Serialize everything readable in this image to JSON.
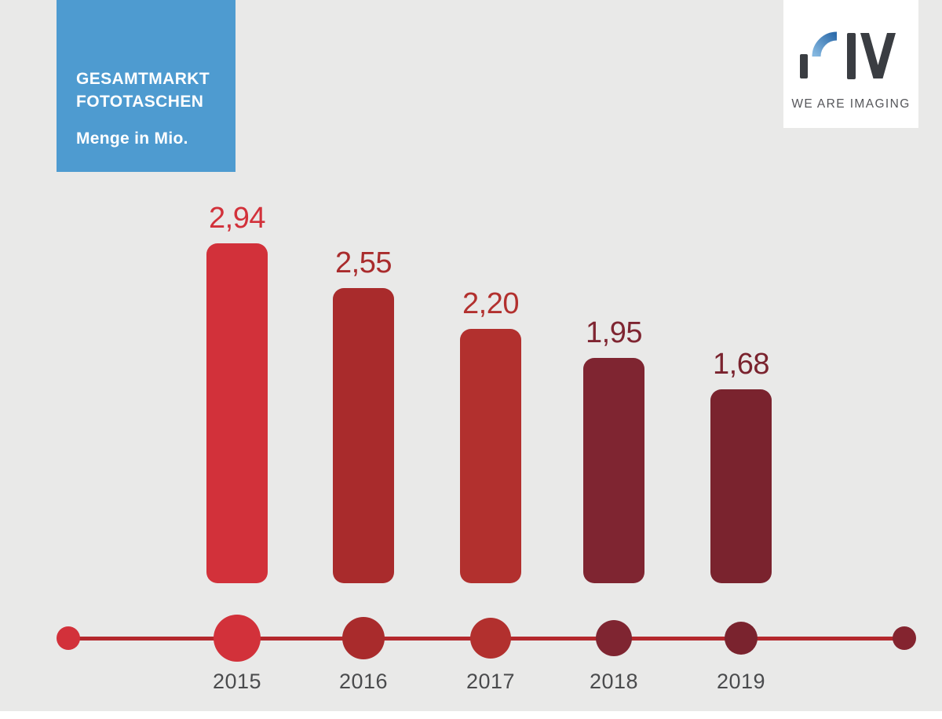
{
  "page": {
    "background": "#e9e9e8"
  },
  "info_box": {
    "title_line1": "GESAMTMARKT",
    "title_line2": "FOTOTASCHEN",
    "subtitle": "Menge in Mio.",
    "background": "#4e9bd0",
    "text_color": "#ffffff"
  },
  "logo_card": {
    "brand": "PIV",
    "tagline": "WE ARE IMAGING",
    "background": "#ffffff",
    "mark_dark": "#3a3d42",
    "mark_blue_light": "#85b8e0",
    "mark_blue_dark": "#2e6cab",
    "tagline_color": "#55565a"
  },
  "chart_data": {
    "type": "bar",
    "title": "GESAMTMARKT FOTOTASCHEN",
    "subtitle": "Menge in Mio.",
    "categories": [
      "2015",
      "2016",
      "2017",
      "2018",
      "2019"
    ],
    "values": [
      2.94,
      2.55,
      2.2,
      1.95,
      1.68
    ],
    "value_labels": [
      "2,94",
      "2,55",
      "2,20",
      "1,95",
      "1,68"
    ],
    "bar_colors": [
      "#d2313a",
      "#a92b2c",
      "#b2302e",
      "#7f2531",
      "#7a232e"
    ],
    "ylim": [
      0,
      3
    ],
    "grid": false,
    "legend": false,
    "x_axis_style": "timeline-dots",
    "timeline": {
      "line_color": "#b4282d",
      "end_dot_left_color": "#d2313a",
      "end_dot_right_color": "#84242f"
    },
    "year_label_color": "#4a4b4d"
  }
}
